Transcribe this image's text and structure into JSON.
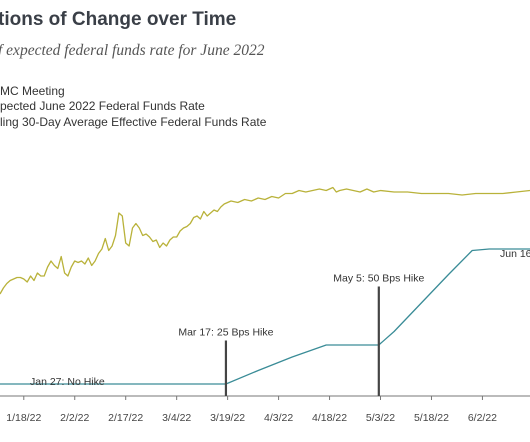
{
  "chart_data": {
    "type": "line",
    "title": "tions of Change over Time",
    "subtitle": "f expected federal funds rate for June 2022",
    "legend": [
      {
        "label": "MC Meeting",
        "color": "#333333"
      },
      {
        "label": "pected June 2022 Federal Funds Rate",
        "color": "#b9b23a"
      },
      {
        "label": "ling 30-Day Average Effective Federal Funds Rate",
        "color": "#3a8c97"
      }
    ],
    "x_ticks": [
      "1/18/22",
      "2/2/22",
      "2/17/22",
      "3/4/22",
      "3/19/22",
      "4/3/22",
      "4/18/22",
      "5/3/22",
      "5/18/22",
      "6/2/22"
    ],
    "x_tick_positions": [
      9,
      24,
      39,
      54,
      69,
      84,
      99,
      114,
      129,
      144
    ],
    "x_range": [
      2,
      158
    ],
    "y_range": [
      0,
      1.55
    ],
    "grid": false,
    "legend_position": "top-left",
    "meetings": [
      {
        "x": 68.5,
        "label": "Mar 17: 25 Bps Hike",
        "line_top": 0.37
      },
      {
        "x": 113.5,
        "label": "May 5: 50 Bps Hike",
        "line_top": 0.73
      }
    ],
    "annotations": [
      {
        "label": "Jan 27: No Hike"
      },
      {
        "label": "Jun 16:"
      }
    ],
    "series": [
      {
        "name": "pected June 2022 Federal Funds Rate",
        "color": "#b9b23a",
        "x": [
          2,
          3,
          4,
          5,
          6,
          7,
          8,
          9,
          10,
          11,
          12,
          13,
          14,
          15,
          16,
          17,
          18,
          19,
          20,
          21,
          22,
          23,
          24,
          25,
          26,
          27,
          28,
          29,
          30,
          31,
          32,
          33,
          34,
          35,
          36,
          37,
          38,
          39,
          40,
          41,
          42,
          43,
          44,
          45,
          46,
          47,
          48,
          49,
          50,
          51,
          52,
          53,
          54,
          55,
          56,
          57,
          58,
          59,
          60,
          61,
          62,
          63,
          64,
          65,
          66,
          67,
          68,
          69,
          70,
          72,
          74,
          76,
          78,
          80,
          82,
          84,
          86,
          88,
          90,
          92,
          94,
          96,
          98,
          100,
          101,
          102,
          104,
          106,
          108,
          110,
          112,
          114,
          118,
          122,
          126,
          130,
          134,
          138,
          142,
          146,
          150,
          154,
          158
        ],
        "y": [
          0.68,
          0.72,
          0.75,
          0.77,
          0.78,
          0.79,
          0.79,
          0.78,
          0.76,
          0.8,
          0.77,
          0.82,
          0.8,
          0.8,
          0.86,
          0.9,
          0.87,
          0.85,
          0.93,
          0.82,
          0.8,
          0.86,
          0.9,
          0.89,
          0.9,
          0.88,
          0.92,
          0.87,
          0.9,
          0.95,
          0.98,
          1.05,
          0.97,
          1.0,
          1.07,
          1.22,
          1.2,
          1.02,
          1.0,
          1.12,
          1.15,
          1.12,
          1.07,
          1.08,
          1.06,
          1.03,
          1.04,
          0.99,
          1.02,
          1.0,
          1.04,
          1.06,
          1.06,
          1.1,
          1.12,
          1.13,
          1.15,
          1.19,
          1.2,
          1.18,
          1.23,
          1.2,
          1.22,
          1.24,
          1.23,
          1.26,
          1.28,
          1.29,
          1.3,
          1.29,
          1.31,
          1.3,
          1.32,
          1.31,
          1.33,
          1.32,
          1.35,
          1.35,
          1.37,
          1.36,
          1.37,
          1.38,
          1.37,
          1.39,
          1.36,
          1.37,
          1.38,
          1.37,
          1.36,
          1.38,
          1.36,
          1.37,
          1.36,
          1.36,
          1.35,
          1.35,
          1.35,
          1.34,
          1.35,
          1.35,
          1.35,
          1.36,
          1.37
        ]
      },
      {
        "name": "ling 30-Day Average Effective Federal Funds Rate",
        "color": "#3a8c97",
        "x": [
          2,
          40,
          68.5,
          78,
          88,
          98,
          113.5,
          118,
          126,
          134,
          141,
          146,
          158
        ],
        "y": [
          0.08,
          0.08,
          0.08,
          0.17,
          0.26,
          0.34,
          0.34,
          0.43,
          0.62,
          0.81,
          0.97,
          0.98,
          0.98
        ]
      }
    ]
  }
}
